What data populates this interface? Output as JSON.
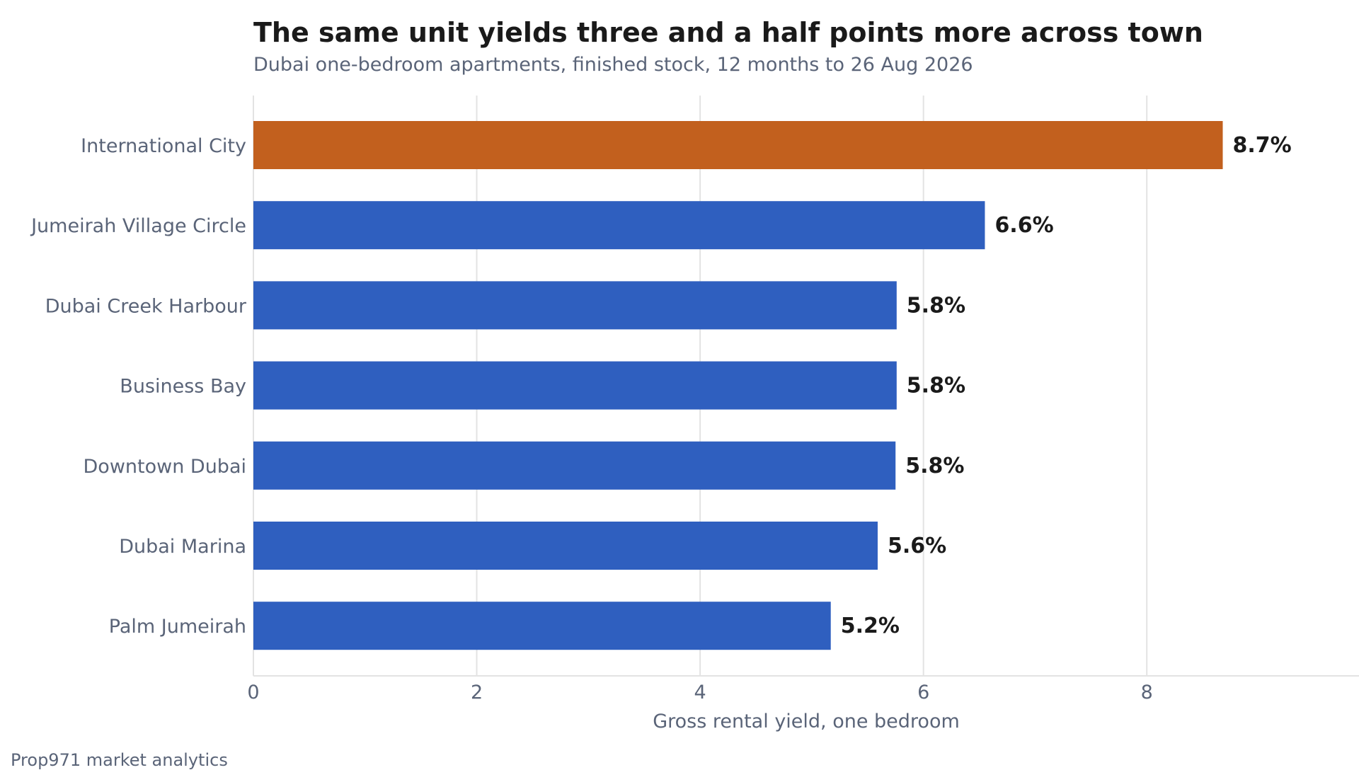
{
  "title": "The same unit yields three and a half points more across town",
  "subtitle": "Dubai one-bedroom apartments, finished stock, 12 months to 26 Aug 2026",
  "source": "Prop971 market analytics",
  "colors": {
    "highlight": "#c2601e",
    "base": "#2f5fbf",
    "grid": "#e3e3e3",
    "axis_text": "#5a6478",
    "label_text": "#1a1a1a"
  },
  "chart_data": {
    "type": "bar",
    "orientation": "horizontal",
    "categories": [
      "International City",
      "Jumeirah Village Circle",
      "Dubai Creek Harbour",
      "Business Bay",
      "Downtown Dubai",
      "Dubai Marina",
      "Palm Jumeirah"
    ],
    "values": [
      8.68,
      6.55,
      5.76,
      5.76,
      5.75,
      5.59,
      5.17
    ],
    "value_labels": [
      "8.7%",
      "6.6%",
      "5.8%",
      "5.8%",
      "5.8%",
      "5.6%",
      "5.2%"
    ],
    "highlight_index": 0,
    "xlabel": "Gross rental yield, one bedroom",
    "ylabel": "",
    "xlim": [
      0,
      9.9
    ],
    "xticks": [
      0,
      2,
      4,
      6,
      8
    ],
    "xtick_labels": [
      "0",
      "2",
      "4",
      "6",
      "8"
    ],
    "grid": "vertical",
    "legend": "none"
  }
}
